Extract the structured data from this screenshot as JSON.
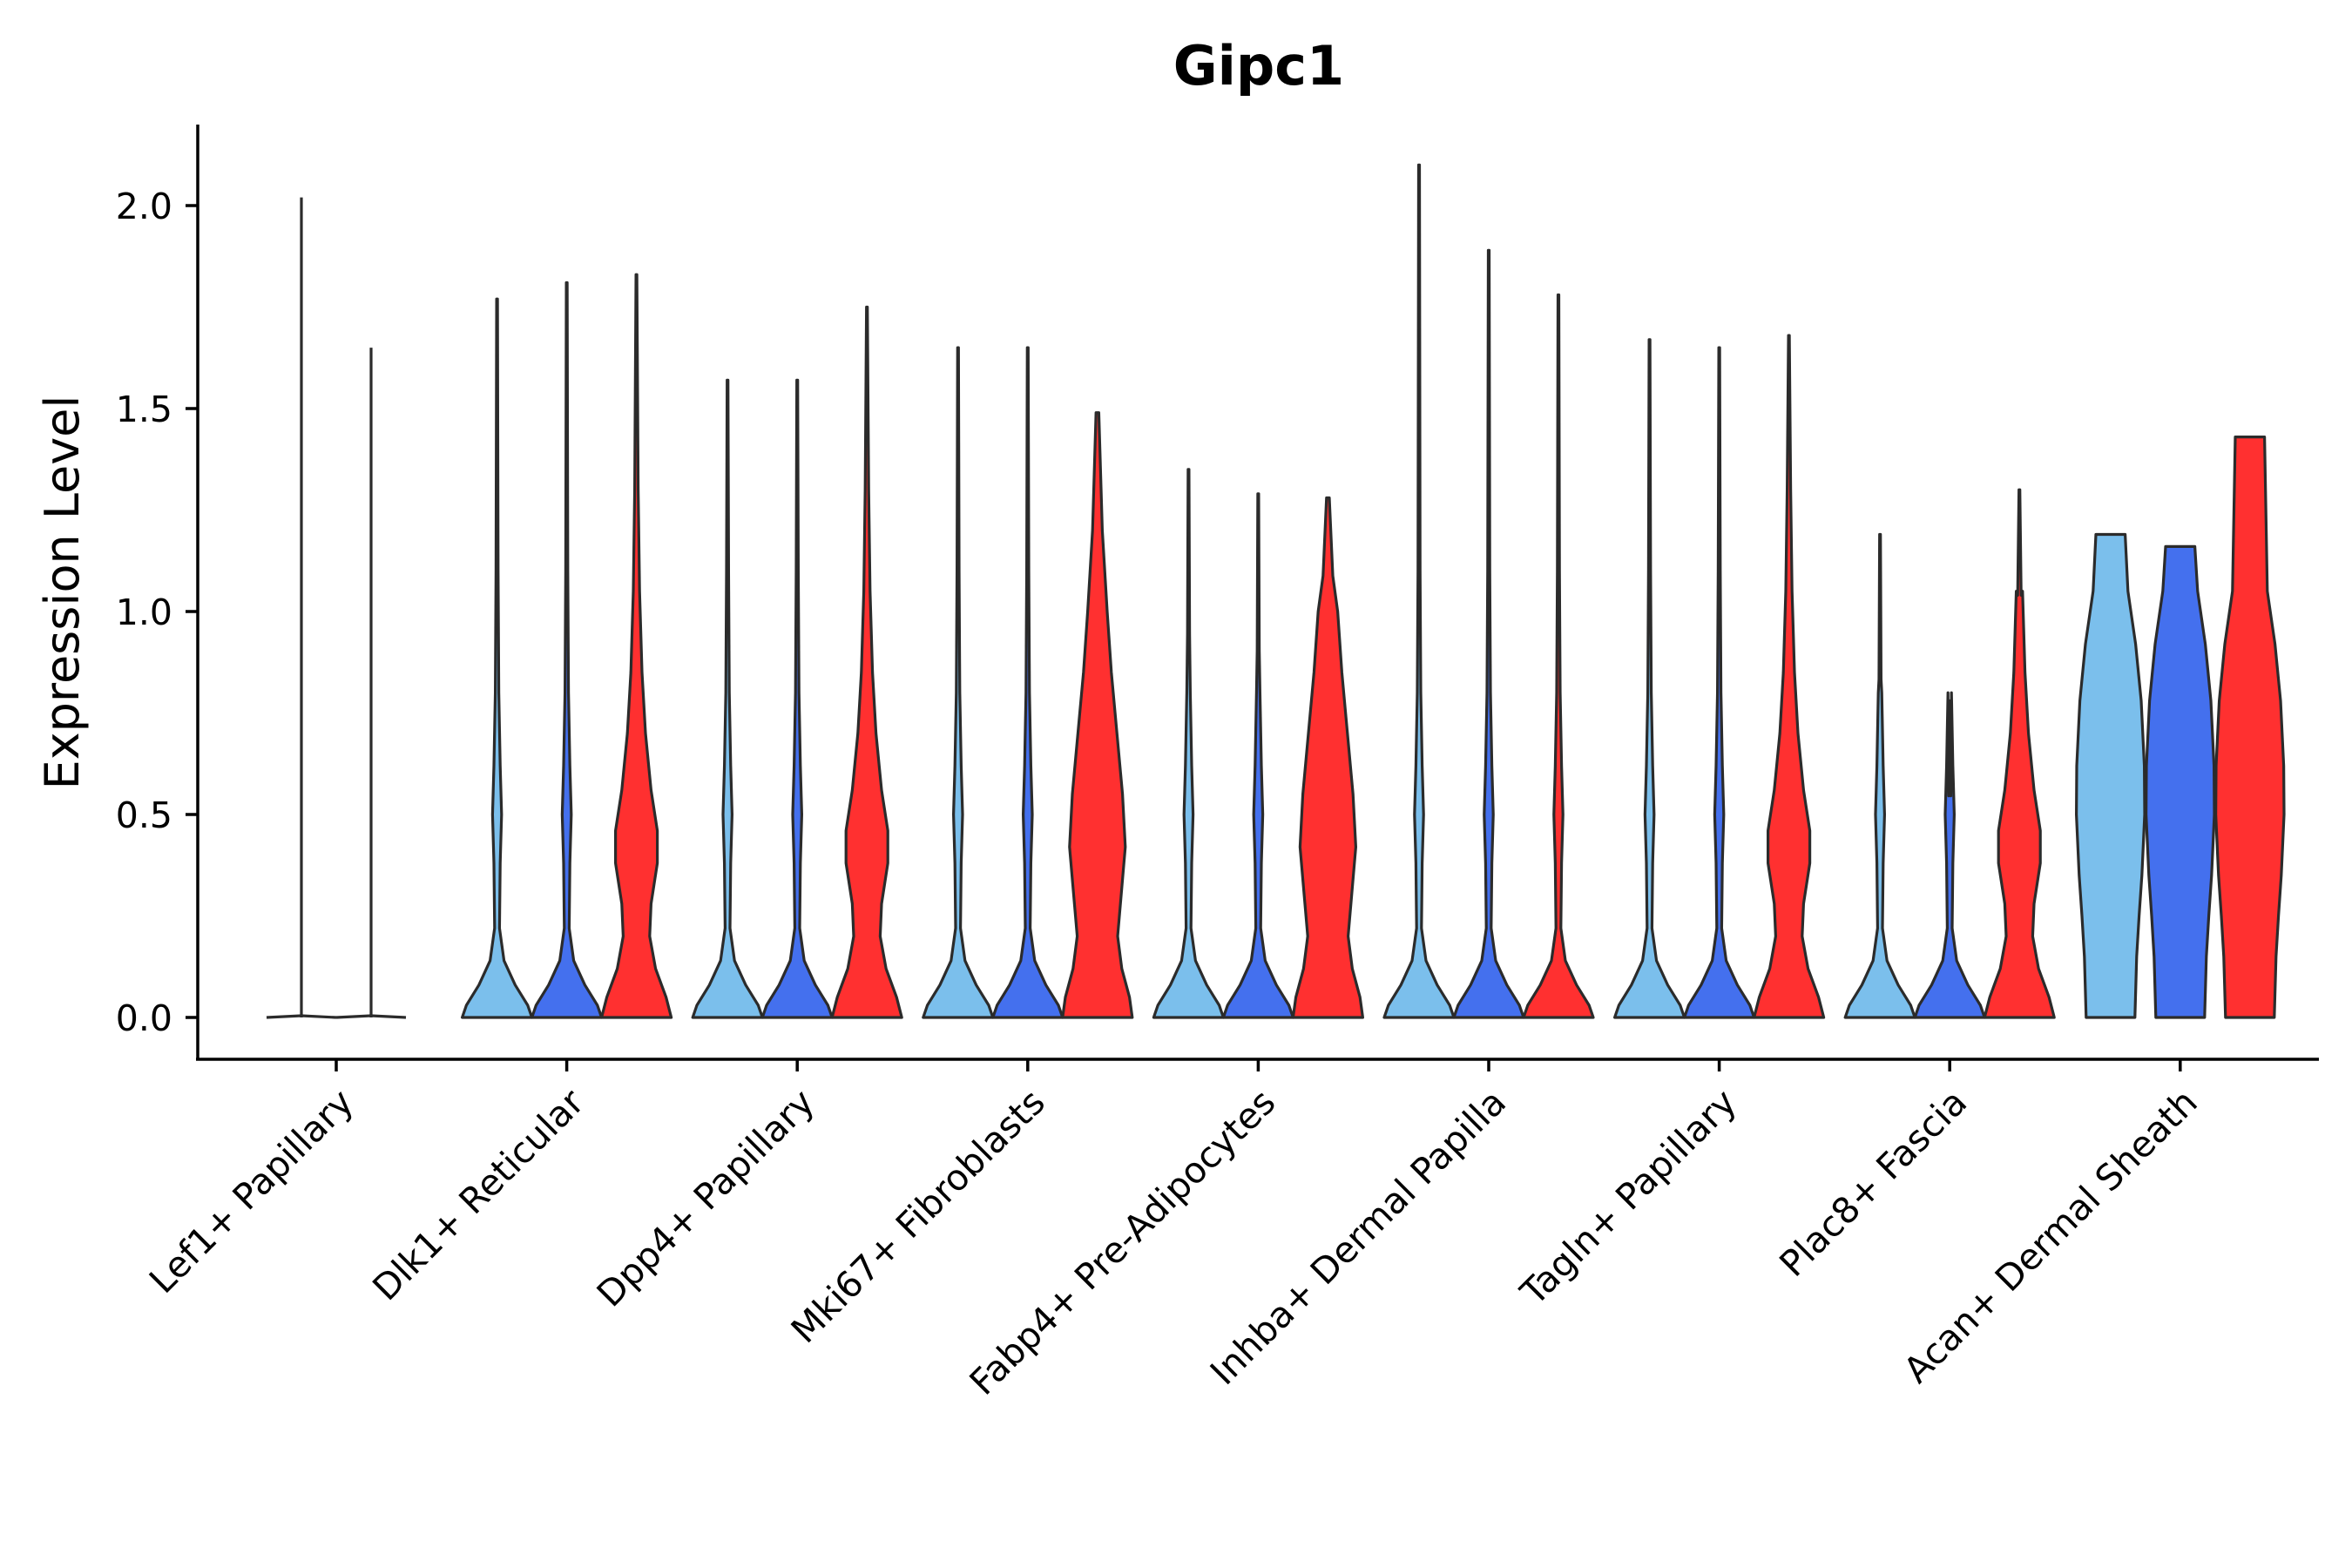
{
  "chart_data": {
    "type": "violin",
    "title": "Gipc1",
    "xlabel": "",
    "ylabel": "Expression Level",
    "ylim": [
      -0.1,
      2.2
    ],
    "yticks": [
      0.0,
      0.5,
      1.0,
      1.5,
      2.0
    ],
    "ytick_labels": [
      "0.0",
      "0.5",
      "1.0",
      "1.5",
      "2.0"
    ],
    "grid": false,
    "legend": "none",
    "groups": [
      {
        "name": "Lef1+ Papillary",
        "violins": [
          {
            "color": "#4a4a4a",
            "max": 2.02,
            "shape": "flat"
          },
          {
            "color": "#4a4a4a",
            "max": 1.65,
            "shape": "flat"
          }
        ]
      },
      {
        "name": "Dlk1+ Reticular",
        "violins": [
          {
            "color": "#7bbfec",
            "max": 1.77,
            "shape": "spike"
          },
          {
            "color": "#4470ee",
            "max": 1.81,
            "shape": "spike"
          },
          {
            "color": "#ff3030",
            "max": 1.83,
            "shape": "bimodal"
          }
        ]
      },
      {
        "name": "Dpp4+ Papillary",
        "violins": [
          {
            "color": "#7bbfec",
            "max": 1.57,
            "shape": "spike"
          },
          {
            "color": "#4470ee",
            "max": 1.57,
            "shape": "spike"
          },
          {
            "color": "#ff3030",
            "max": 1.75,
            "shape": "bimodal"
          }
        ]
      },
      {
        "name": "Mki67+ Fibroblasts",
        "violins": [
          {
            "color": "#7bbfec",
            "max": 1.65,
            "shape": "spike"
          },
          {
            "color": "#4470ee",
            "max": 1.65,
            "shape": "spike"
          },
          {
            "color": "#ff3030",
            "max": 1.49,
            "shape": "wide"
          }
        ]
      },
      {
        "name": "Fabp4+ Pre-Adipocytes",
        "violins": [
          {
            "color": "#7bbfec",
            "max": 1.35,
            "shape": "spike"
          },
          {
            "color": "#4470ee",
            "max": 1.29,
            "shape": "spike"
          },
          {
            "color": "#ff3030",
            "max": 1.28,
            "shape": "wide"
          }
        ]
      },
      {
        "name": "Inhba+ Dermal Papilla",
        "violins": [
          {
            "color": "#7bbfec",
            "max": 2.1,
            "shape": "spike"
          },
          {
            "color": "#4470ee",
            "max": 1.89,
            "shape": "spike"
          },
          {
            "color": "#ff3030",
            "max": 1.78,
            "shape": "spike"
          }
        ]
      },
      {
        "name": "Tagln+ Papillary",
        "violins": [
          {
            "color": "#7bbfec",
            "max": 1.67,
            "shape": "spike"
          },
          {
            "color": "#4470ee",
            "max": 1.65,
            "shape": "spike"
          },
          {
            "color": "#ff3030",
            "max": 1.68,
            "shape": "bimodal"
          }
        ]
      },
      {
        "name": "Plac8+ Fascia",
        "violins": [
          {
            "color": "#7bbfec",
            "max": 1.19,
            "shape": "spike"
          },
          {
            "color": "#4470ee",
            "max": 0.78,
            "shape": "spike"
          },
          {
            "color": "#ff3030",
            "max": 1.3,
            "shape": "bimodal"
          }
        ]
      },
      {
        "name": "Acan+ Dermal Sheath",
        "violins": [
          {
            "color": "#7bbfec",
            "max": 1.19,
            "shape": "block"
          },
          {
            "color": "#4470ee",
            "max": 1.16,
            "shape": "block"
          },
          {
            "color": "#ff3030",
            "max": 1.43,
            "shape": "block"
          }
        ]
      }
    ]
  }
}
